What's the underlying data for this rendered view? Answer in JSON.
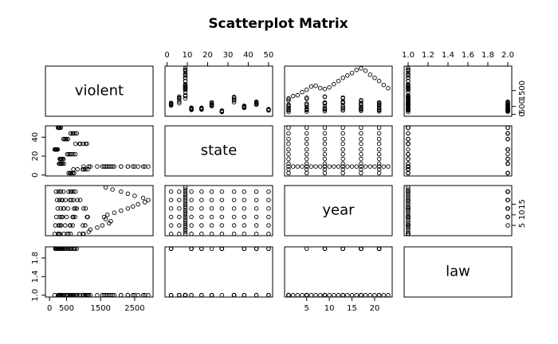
{
  "chart_data": {
    "type": "scatter_matrix",
    "title": "Scatterplot Matrix",
    "variables": [
      {
        "name": "violent",
        "lim": [
          -120,
          3040
        ],
        "x_ticks": [
          0,
          500,
          1500,
          2500
        ],
        "y_ticks": [
          0,
          500,
          1500
        ],
        "values": [
          1000,
          1150,
          1200,
          1400,
          1550,
          1750,
          1800,
          1650,
          1600,
          1700,
          1900,
          2100,
          2300,
          2450,
          2600,
          2800,
          2900,
          2750,
          2500,
          2300,
          2100,
          1850,
          1650,
          560,
          610,
          680,
          720,
          600,
          640,
          980,
          1050,
          1120,
          1000,
          820,
          700,
          280,
          300,
          350,
          420,
          380,
          330,
          300,
          340,
          380,
          410,
          350,
          320,
          520,
          600,
          700,
          760,
          640,
          560,
          150,
          170,
          200,
          240,
          220,
          190,
          880,
          980,
          1100,
          1060,
          900,
          760,
          420,
          460,
          500,
          540,
          470,
          410,
          620,
          680,
          750,
          800,
          700,
          620,
          250,
          270,
          300,
          330,
          290,
          260
        ]
      },
      {
        "name": "state",
        "lim": [
          -1,
          52
        ],
        "x_ticks": [
          0,
          10,
          20,
          30,
          40,
          50
        ],
        "y_ticks": [
          0,
          20,
          40
        ],
        "values": [
          9,
          9,
          9,
          9,
          9,
          9,
          9,
          9,
          9,
          9,
          9,
          9,
          9,
          9,
          9,
          9,
          9,
          9,
          9,
          9,
          9,
          9,
          9,
          2,
          2,
          2,
          2,
          2,
          2,
          6,
          6,
          6,
          6,
          6,
          6,
          12,
          12,
          12,
          12,
          12,
          12,
          17,
          17,
          17,
          17,
          17,
          17,
          22,
          22,
          22,
          22,
          22,
          22,
          27,
          27,
          27,
          27,
          27,
          27,
          33,
          33,
          33,
          33,
          33,
          33,
          38,
          38,
          38,
          38,
          38,
          38,
          44,
          44,
          44,
          44,
          44,
          44,
          50,
          50,
          50,
          50,
          50,
          50
        ]
      },
      {
        "name": "year",
        "lim": [
          0.12,
          23.88
        ],
        "x_ticks": [
          5,
          10,
          15,
          20
        ],
        "y_ticks": [
          5,
          10,
          15
        ],
        "values": [
          1,
          2,
          3,
          4,
          5,
          6,
          7,
          8,
          9,
          10,
          11,
          12,
          13,
          14,
          15,
          16,
          17,
          18,
          19,
          20,
          21,
          22,
          23,
          1,
          5,
          9,
          13,
          17,
          21,
          1,
          5,
          9,
          13,
          17,
          21,
          1,
          5,
          9,
          13,
          17,
          21,
          1,
          5,
          9,
          13,
          17,
          21,
          1,
          5,
          9,
          13,
          17,
          21,
          1,
          5,
          9,
          13,
          17,
          21,
          1,
          5,
          9,
          13,
          17,
          21,
          1,
          5,
          9,
          13,
          17,
          21,
          1,
          5,
          9,
          13,
          17,
          21,
          1,
          5,
          9,
          13,
          17,
          21
        ]
      },
      {
        "name": "law",
        "lim": [
          0.96,
          2.04
        ],
        "x_ticks": [
          {
            "value": 1,
            "label": "1.0"
          },
          {
            "value": 1.2,
            "label": "1.2"
          },
          {
            "value": 1.4,
            "label": "1.4"
          },
          {
            "value": 1.6,
            "label": "1.6"
          },
          {
            "value": 1.8,
            "label": "1.8"
          },
          {
            "value": 2,
            "label": "2.0"
          }
        ],
        "y_ticks": [
          {
            "value": 1,
            "label": "1.0"
          },
          {
            "value": 1.4,
            "label": "1.4"
          },
          {
            "value": 1.8,
            "label": "1.8"
          }
        ],
        "values": [
          1,
          1,
          1,
          1,
          1,
          1,
          1,
          1,
          1,
          1,
          1,
          1,
          1,
          1,
          1,
          1,
          1,
          1,
          1,
          1,
          1,
          1,
          1,
          1,
          1,
          1,
          2,
          2,
          2,
          1,
          1,
          1,
          1,
          1,
          1,
          1,
          1,
          2,
          2,
          2,
          2,
          1,
          1,
          1,
          2,
          2,
          2,
          1,
          1,
          1,
          1,
          1,
          2,
          1,
          2,
          2,
          2,
          2,
          2,
          1,
          1,
          1,
          1,
          1,
          1,
          1,
          1,
          1,
          2,
          2,
          2,
          1,
          1,
          2,
          2,
          2,
          2,
          1,
          1,
          1,
          1,
          2,
          2
        ]
      }
    ]
  }
}
